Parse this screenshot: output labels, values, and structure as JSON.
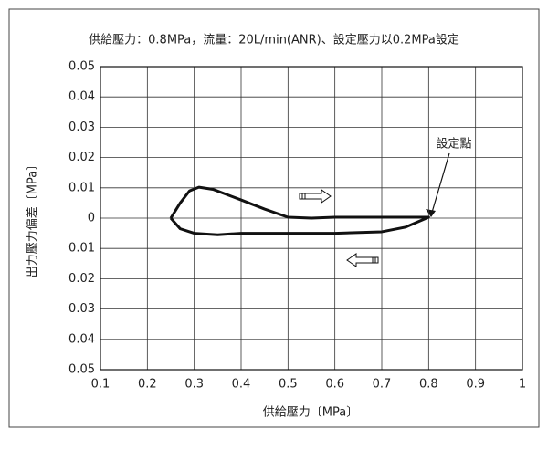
{
  "chart_data": {
    "type": "line",
    "title": "供給壓力：0.8MPa，流量：20L/min(ANR)、設定壓力以0.2MPa設定",
    "x_label": "供給壓力〔MPa〕",
    "y_label": "出力壓力偏差〔MPa〕",
    "annotation": "設定點",
    "x": [
      0.25,
      0.27,
      0.29,
      0.31,
      0.34,
      0.4,
      0.45,
      0.5,
      0.55,
      0.6,
      0.8,
      0.75,
      0.7,
      0.6,
      0.5,
      0.4,
      0.35,
      0.3,
      0.27,
      0.25
    ],
    "series": [
      {
        "name": "出力壓力偏差",
        "color": "#111111",
        "values": [
          0,
          0.005,
          0.009,
          0.0102,
          0.0095,
          0.006,
          0.003,
          0.0003,
          0,
          0.0003,
          0.0003,
          -0.003,
          -0.0045,
          -0.005,
          -0.005,
          -0.005,
          -0.0055,
          -0.005,
          -0.0035,
          0
        ]
      }
    ],
    "xlim": [
      0.1,
      1
    ],
    "xticks": [
      0.1,
      0.2,
      0.3,
      0.4,
      0.5,
      0.6,
      0.7,
      0.8,
      0.9,
      1
    ],
    "ylim": [
      -0.05,
      0.05
    ],
    "yticks": [
      {
        "value": -0.05,
        "label": "0.05"
      },
      {
        "value": -0.04,
        "label": "0.04"
      },
      {
        "value": -0.03,
        "label": "0.03"
      },
      {
        "value": -0.02,
        "label": "0.02"
      },
      {
        "value": -0.01,
        "label": "0.01"
      },
      0,
      0.01,
      0.02,
      0.03,
      0.04,
      0.05
    ],
    "grid": true
  }
}
